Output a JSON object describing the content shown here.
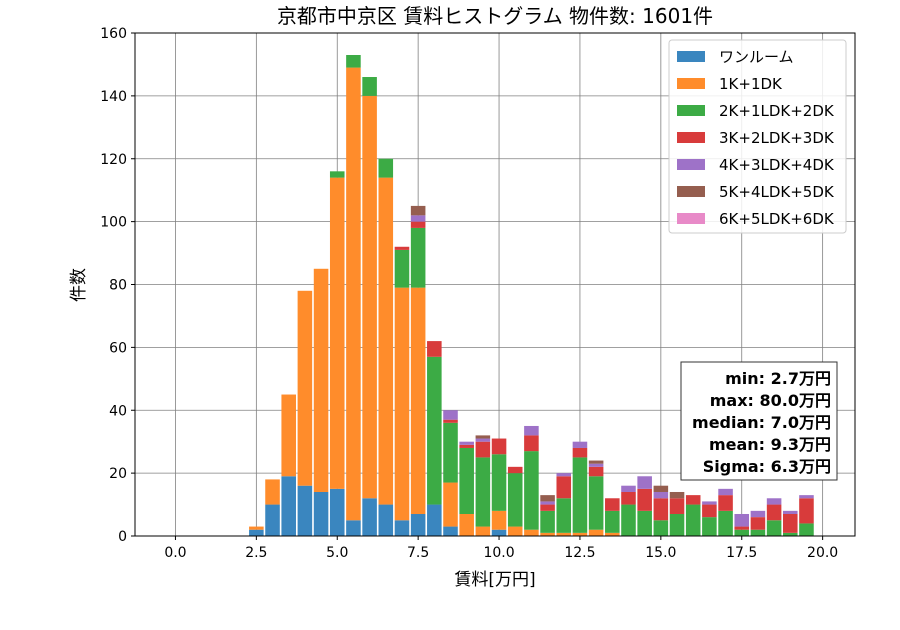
{
  "chart_data": {
    "type": "bar",
    "stacked": true,
    "title": "京都市中京区 賃料ヒストグラム  物件数: 1601件",
    "xlabel": "賃料[万円]",
    "ylabel": "件数",
    "xlim": [
      -1.25,
      21.0
    ],
    "ylim": [
      0,
      160
    ],
    "xticks": [
      "0.0",
      "2.5",
      "5.0",
      "7.5",
      "10.0",
      "12.5",
      "15.0",
      "17.5",
      "20.0"
    ],
    "xtick_values": [
      0,
      2.5,
      5,
      7.5,
      10,
      12.5,
      15,
      17.5,
      20
    ],
    "yticks": [
      "0",
      "20",
      "40",
      "60",
      "80",
      "100",
      "120",
      "140",
      "160"
    ],
    "ytick_values": [
      0,
      20,
      40,
      60,
      80,
      100,
      120,
      140,
      160
    ],
    "grid": true,
    "legend_position": "top-right",
    "bin_width": 0.5,
    "x": [
      2.5,
      3.0,
      3.5,
      4.0,
      4.5,
      5.0,
      5.5,
      6.0,
      6.5,
      7.0,
      7.5,
      8.0,
      8.5,
      9.0,
      9.5,
      10.0,
      10.5,
      11.0,
      11.5,
      12.0,
      12.5,
      13.0,
      13.5,
      14.0,
      14.5,
      15.0,
      15.5,
      16.0,
      16.5,
      17.0,
      17.5,
      18.0,
      18.5,
      19.0,
      19.5
    ],
    "series": [
      {
        "name": "ワンルーム",
        "color": "#3a86bf",
        "values": [
          2,
          10,
          19,
          16,
          14,
          15,
          5,
          12,
          10,
          5,
          7,
          10,
          3,
          0,
          0,
          2,
          0,
          0,
          0,
          0,
          0,
          0,
          0,
          0,
          0,
          0,
          0,
          0,
          0,
          0,
          0,
          0,
          0,
          0,
          0
        ]
      },
      {
        "name": "1K+1DK",
        "color": "#ff8c2b",
        "values": [
          1,
          8,
          26,
          62,
          71,
          99,
          144,
          128,
          104,
          74,
          72,
          0,
          14,
          7,
          3,
          6,
          3,
          2,
          1,
          1,
          1,
          2,
          1,
          0,
          0,
          0,
          0,
          0,
          0,
          0,
          0,
          0,
          0,
          0,
          0
        ]
      },
      {
        "name": "2K+1LDK+2DK",
        "color": "#3cab45",
        "values": [
          0,
          0,
          0,
          0,
          0,
          2,
          4,
          6,
          6,
          12,
          19,
          47,
          19,
          21,
          22,
          18,
          17,
          25,
          7,
          11,
          24,
          17,
          7,
          10,
          8,
          5,
          7,
          10,
          6,
          8,
          2,
          2,
          5,
          1,
          4
        ]
      },
      {
        "name": "3K+2LDK+3DK",
        "color": "#d83b3b",
        "values": [
          0,
          0,
          0,
          0,
          0,
          0,
          0,
          0,
          0,
          1,
          2,
          5,
          1,
          1,
          5,
          5,
          2,
          5,
          2,
          7,
          3,
          3,
          4,
          4,
          7,
          7,
          5,
          3,
          4,
          5,
          1,
          4,
          5,
          6,
          8
        ]
      },
      {
        "name": "4K+3LDK+4DK",
        "color": "#9e72c8",
        "values": [
          0,
          0,
          0,
          0,
          0,
          0,
          0,
          0,
          0,
          0,
          2,
          0,
          3,
          1,
          1,
          0,
          0,
          3,
          1,
          1,
          2,
          1,
          0,
          2,
          4,
          2,
          0,
          0,
          1,
          2,
          4,
          2,
          2,
          1,
          1
        ]
      },
      {
        "name": "5K+4LDK+5DK",
        "color": "#955e4f",
        "values": [
          0,
          0,
          0,
          0,
          0,
          0,
          0,
          0,
          0,
          0,
          3,
          0,
          0,
          0,
          1,
          0,
          0,
          0,
          2,
          0,
          0,
          1,
          0,
          0,
          0,
          2,
          2,
          0,
          0,
          0,
          0,
          0,
          0,
          0,
          0
        ]
      },
      {
        "name": "6K+5LDK+6DK",
        "color": "#e88ac8",
        "values": [
          0,
          0,
          0,
          0,
          0,
          0,
          0,
          0,
          0,
          0,
          0,
          0,
          0,
          0,
          0,
          0,
          0,
          0,
          0,
          0,
          0,
          0,
          0,
          0,
          0,
          0,
          0,
          0,
          0,
          0,
          0,
          0,
          0,
          0,
          0
        ]
      }
    ],
    "annotations": [
      "min: 2.7万円",
      "max: 80.0万円",
      "median: 7.0万円",
      "mean: 9.3万円",
      "Sigma: 6.3万円"
    ]
  }
}
